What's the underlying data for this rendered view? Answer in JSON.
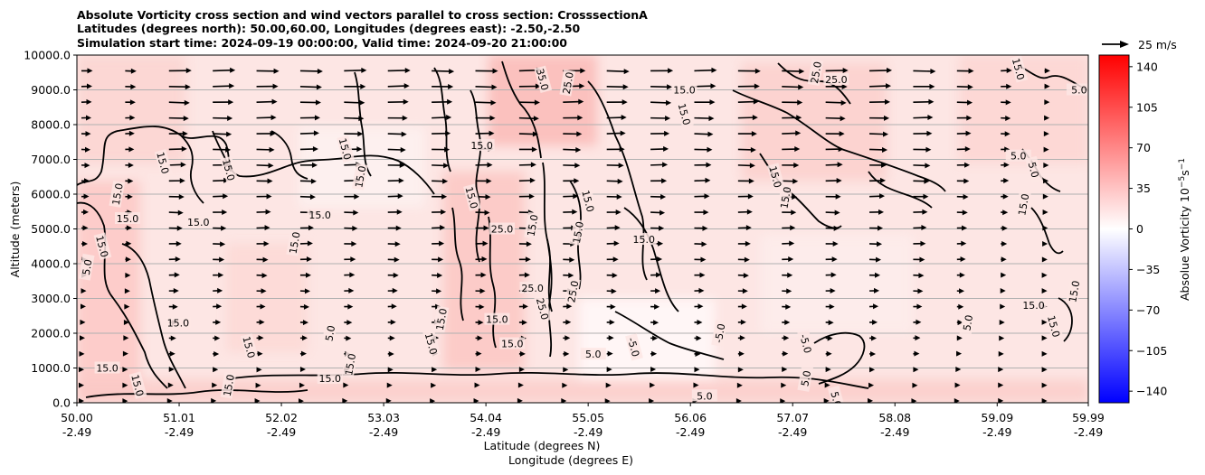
{
  "chart_data": {
    "type": "heatmap",
    "title_lines": [
      "Absolute Vorticity cross section and wind vectors parallel to cross section: CrosssectionA",
      "Latitudes (degrees north): 50.00,60.00, Longitudes (degrees east): -2.50,-2.50",
      "Simulation start time: 2024-09-19 00:00:00, Valid time: 2024-09-20 21:00:00"
    ],
    "xlabel_lines": [
      "Latitude (degrees N)",
      "Longitude (degrees E)"
    ],
    "ylabel": "Altitude (meters)",
    "x_ticks": [
      {
        "lat": "50.00",
        "lon": "-2.49"
      },
      {
        "lat": "51.01",
        "lon": "-2.49"
      },
      {
        "lat": "52.02",
        "lon": "-2.49"
      },
      {
        "lat": "53.03",
        "lon": "-2.49"
      },
      {
        "lat": "54.04",
        "lon": "-2.49"
      },
      {
        "lat": "55.05",
        "lon": "-2.49"
      },
      {
        "lat": "56.06",
        "lon": "-2.49"
      },
      {
        "lat": "57.07",
        "lon": "-2.49"
      },
      {
        "lat": "58.08",
        "lon": "-2.49"
      },
      {
        "lat": "59.09",
        "lon": "-2.49"
      },
      {
        "lat": "59.99",
        "lon": "-2.49"
      }
    ],
    "xlim": [
      50.0,
      59.99
    ],
    "y_ticks": [
      "0.0",
      "1000.0",
      "2000.0",
      "3000.0",
      "4000.0",
      "5000.0",
      "6000.0",
      "7000.0",
      "8000.0",
      "9000.0",
      "10000.0"
    ],
    "ylim": [
      0,
      10000
    ],
    "grid": "horizontal",
    "colorbar": {
      "label": "Absolue Vorticity 10",
      "label_exponent": "−5",
      "label_unit": "s",
      "label_unit_exponent": "−1",
      "ticks": [
        "140",
        "105",
        "70",
        "35",
        "0",
        "−35",
        "−70",
        "−105",
        "−140"
      ],
      "range": [
        -150,
        150
      ],
      "cmap": "bwr",
      "color_low": "#0000ff",
      "color_mid": "#ffffff",
      "color_high": "#ff0000"
    },
    "quiver_key": {
      "label": "25 m/s",
      "value": 25
    },
    "contour_levels": [
      -5.0,
      5.0,
      15.0,
      25.0,
      35.0
    ],
    "contour_labels": [
      {
        "text": "15.0",
        "lat": 50.85,
        "alt": 6900
      },
      {
        "text": "15.0",
        "lat": 50.4,
        "alt": 6000
      },
      {
        "text": "15.0",
        "lat": 50.5,
        "alt": 5300
      },
      {
        "text": "15.0",
        "lat": 50.25,
        "alt": 4500
      },
      {
        "text": "5.0",
        "lat": 50.1,
        "alt": 3900
      },
      {
        "text": "15.0",
        "lat": 51.2,
        "alt": 5200
      },
      {
        "text": "15.0",
        "lat": 51.5,
        "alt": 6700
      },
      {
        "text": "15.0",
        "lat": 52.15,
        "alt": 4600
      },
      {
        "text": "15.0",
        "lat": 52.4,
        "alt": 5400
      },
      {
        "text": "15.0",
        "lat": 52.65,
        "alt": 7300
      },
      {
        "text": "15.0",
        "lat": 52.8,
        "alt": 6500
      },
      {
        "text": "15.0",
        "lat": 54.0,
        "alt": 7400
      },
      {
        "text": "15.0",
        "lat": 53.9,
        "alt": 5900
      },
      {
        "text": "15.0",
        "lat": 54.5,
        "alt": 5100
      },
      {
        "text": "25.0",
        "lat": 54.2,
        "alt": 5000
      },
      {
        "text": "15.0",
        "lat": 55.05,
        "alt": 5800
      },
      {
        "text": "15.0",
        "lat": 54.95,
        "alt": 4900
      },
      {
        "text": "15.0",
        "lat": 55.6,
        "alt": 4700
      },
      {
        "text": "35.0",
        "lat": 54.6,
        "alt": 9300
      },
      {
        "text": "25.0",
        "lat": 54.85,
        "alt": 9200
      },
      {
        "text": "15.0",
        "lat": 56.0,
        "alt": 9000
      },
      {
        "text": "15.0",
        "lat": 56.0,
        "alt": 8300
      },
      {
        "text": "25.0",
        "lat": 57.3,
        "alt": 9500
      },
      {
        "text": "25.0",
        "lat": 57.5,
        "alt": 9300
      },
      {
        "text": "15.0",
        "lat": 56.9,
        "alt": 6500
      },
      {
        "text": "15.0",
        "lat": 57.0,
        "alt": 5900
      },
      {
        "text": "5.0",
        "lat": 59.3,
        "alt": 7100
      },
      {
        "text": "5.0",
        "lat": 59.45,
        "alt": 6700
      },
      {
        "text": "15.0",
        "lat": 59.35,
        "alt": 5700
      },
      {
        "text": "5.0",
        "lat": 59.9,
        "alt": 9000
      },
      {
        "text": "15.0",
        "lat": 59.3,
        "alt": 9600
      },
      {
        "text": "15.0",
        "lat": 59.85,
        "alt": 3200
      },
      {
        "text": "15.0",
        "lat": 59.45,
        "alt": 2800
      },
      {
        "text": "15.0",
        "lat": 59.65,
        "alt": 2200
      },
      {
        "text": "5.0",
        "lat": 58.8,
        "alt": 2300
      },
      {
        "text": "25.0",
        "lat": 54.5,
        "alt": 3300
      },
      {
        "text": "25.0",
        "lat": 54.6,
        "alt": 2700
      },
      {
        "text": "25.0",
        "lat": 54.9,
        "alt": 3200
      },
      {
        "text": "15.0",
        "lat": 54.15,
        "alt": 2400
      },
      {
        "text": "15.0",
        "lat": 53.5,
        "alt": 1700
      },
      {
        "text": "15.0",
        "lat": 53.6,
        "alt": 2400
      },
      {
        "text": "15.0",
        "lat": 54.3,
        "alt": 1700
      },
      {
        "text": "-5.0",
        "lat": 55.5,
        "alt": 1600
      },
      {
        "text": "-5.0",
        "lat": 56.35,
        "alt": 2000
      },
      {
        "text": "5.0",
        "lat": 55.1,
        "alt": 1400
      },
      {
        "text": "-5.0",
        "lat": 57.2,
        "alt": 1700
      },
      {
        "text": "5.0",
        "lat": 52.5,
        "alt": 2000
      },
      {
        "text": "15.0",
        "lat": 51.0,
        "alt": 2300
      },
      {
        "text": "15.0",
        "lat": 51.7,
        "alt": 1600
      },
      {
        "text": "15.0",
        "lat": 52.7,
        "alt": 1100
      },
      {
        "text": "15.0",
        "lat": 52.5,
        "alt": 700
      },
      {
        "text": "15.0",
        "lat": 50.6,
        "alt": 500
      },
      {
        "text": "15.0",
        "lat": 51.5,
        "alt": 500
      },
      {
        "text": "15.0",
        "lat": 50.3,
        "alt": 1000
      },
      {
        "text": "5.0",
        "lat": 57.5,
        "alt": 100
      },
      {
        "text": "5.0",
        "lat": 57.2,
        "alt": 700
      },
      {
        "text": "5.0",
        "lat": 56.2,
        "alt": 200
      }
    ]
  }
}
